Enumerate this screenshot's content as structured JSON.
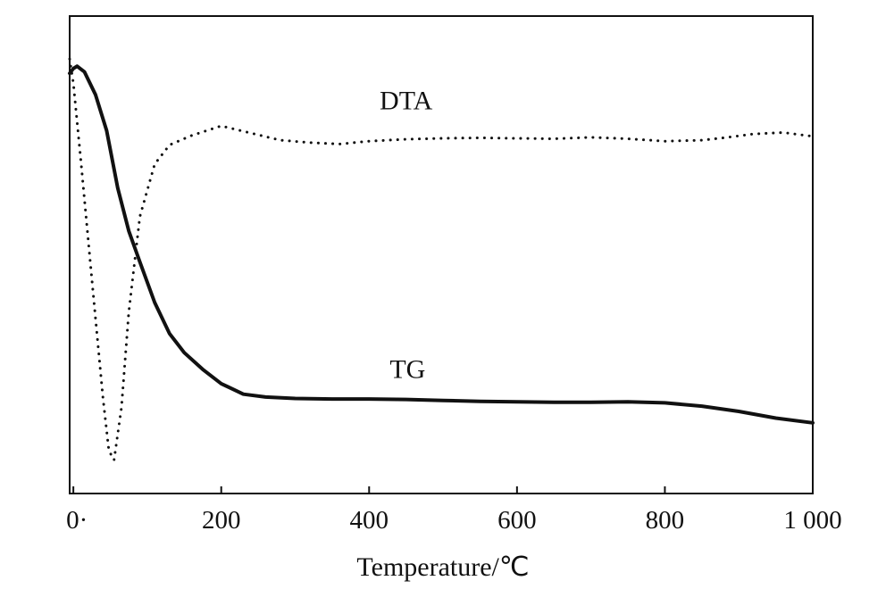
{
  "chart_data": {
    "type": "line",
    "xlabel": "Temperature/℃",
    "ylabel": "",
    "xlim": [
      -5,
      1000
    ],
    "ylim": [
      0,
      100
    ],
    "x_ticks": [
      0,
      200,
      400,
      600,
      800,
      1000
    ],
    "x_tick_labels": [
      "0·",
      "200",
      "400",
      "600",
      "800",
      "1 000"
    ],
    "grid": false,
    "legend": "inline-labels",
    "series": [
      {
        "name": "DTA",
        "style": "dotted",
        "color": "#111111",
        "x": [
          -5,
          0,
          10,
          25,
          40,
          48,
          55,
          65,
          75,
          90,
          110,
          130,
          160,
          200,
          240,
          280,
          320,
          360,
          400,
          450,
          500,
          550,
          600,
          650,
          700,
          750,
          800,
          850,
          880,
          920,
          960,
          1000
        ],
        "y": [
          91,
          86,
          70,
          45,
          20,
          9,
          7,
          18,
          38,
          58,
          69,
          73,
          75,
          77,
          75.5,
          74,
          73.5,
          73.2,
          73.8,
          74.2,
          74.4,
          74.5,
          74.4,
          74.3,
          74.6,
          74.3,
          73.8,
          74,
          74.5,
          75.3,
          75.6,
          74.8
        ]
      },
      {
        "name": "TG",
        "style": "solid",
        "color": "#111111",
        "x": [
          -5,
          0,
          5,
          15,
          30,
          45,
          60,
          75,
          90,
          110,
          130,
          150,
          175,
          200,
          230,
          260,
          300,
          350,
          400,
          450,
          500,
          550,
          600,
          650,
          700,
          750,
          800,
          850,
          900,
          950,
          1000
        ],
        "y": [
          88,
          89,
          89.5,
          88.3,
          83.5,
          76,
          64,
          55,
          48.5,
          40,
          33.5,
          29.5,
          26,
          23,
          20.8,
          20.2,
          19.9,
          19.8,
          19.8,
          19.7,
          19.5,
          19.3,
          19.2,
          19.1,
          19.1,
          19.2,
          19,
          18.3,
          17.2,
          15.8,
          14.8
        ]
      }
    ],
    "annotations": [
      {
        "text": "DTA",
        "series": "DTA",
        "x": 450,
        "y": 80.5
      },
      {
        "text": "TG",
        "series": "TG",
        "x": 452,
        "y": 24.2
      }
    ]
  }
}
